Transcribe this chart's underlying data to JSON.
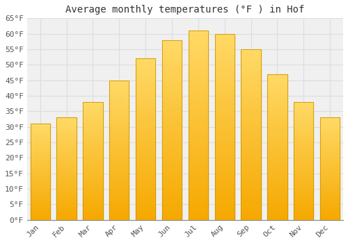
{
  "title": "Average monthly temperatures (°F ) in Hof",
  "months": [
    "Jan",
    "Feb",
    "Mar",
    "Apr",
    "May",
    "Jun",
    "Jul",
    "Aug",
    "Sep",
    "Oct",
    "Nov",
    "Dec"
  ],
  "values": [
    31,
    33,
    38,
    45,
    52,
    58,
    61,
    60,
    55,
    47,
    38,
    33
  ],
  "bar_color_top": "#FFD966",
  "bar_color_bottom": "#F5A800",
  "bar_edge_color": "#C8960A",
  "background_color": "#FFFFFF",
  "plot_bg_color": "#F0F0F0",
  "ylim": [
    0,
    65
  ],
  "yticks": [
    0,
    5,
    10,
    15,
    20,
    25,
    30,
    35,
    40,
    45,
    50,
    55,
    60,
    65
  ],
  "grid_color": "#DDDDDD",
  "title_fontsize": 10,
  "tick_fontsize": 8,
  "bar_width": 0.75
}
